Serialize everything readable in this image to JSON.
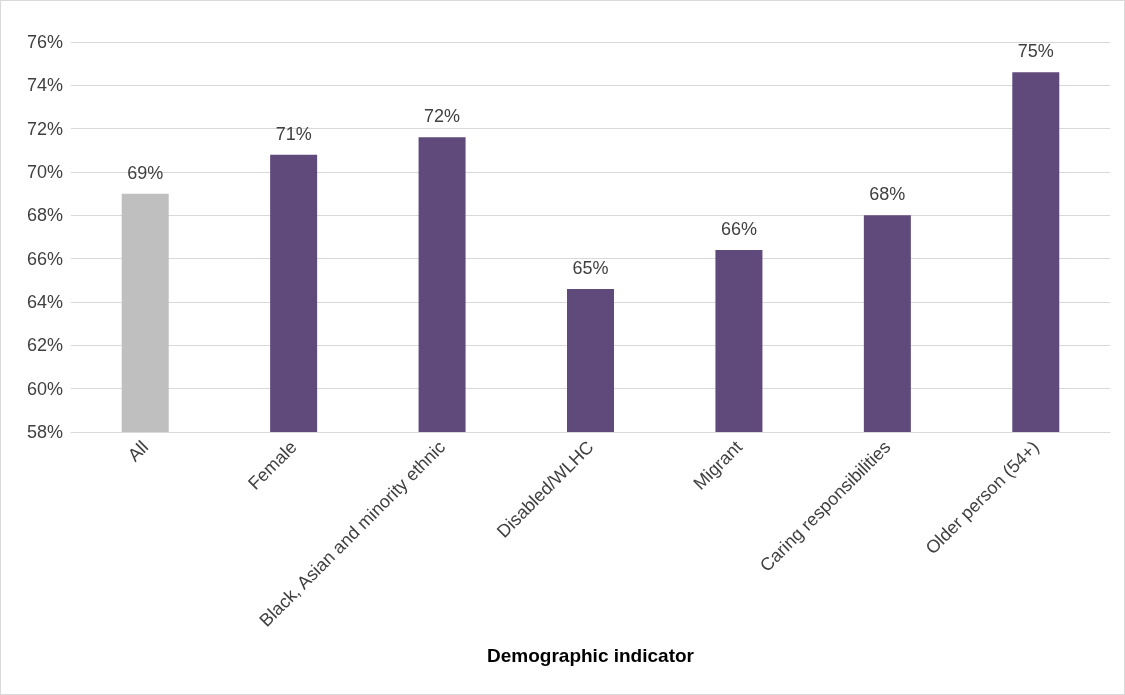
{
  "chart_data": {
    "type": "bar",
    "xlabel": "Demographic indicator",
    "categories": [
      "All",
      "Female",
      "Black, Asian and minority ethnic",
      "Disabled/WLHC",
      "Migrant",
      "Caring responsibilities",
      "Older person (54+)"
    ],
    "values": [
      69.0,
      70.8,
      71.6,
      64.6,
      66.4,
      68.0,
      74.6
    ],
    "value_labels": [
      "69%",
      "71%",
      "72%",
      "65%",
      "66%",
      "68%",
      "75%"
    ],
    "colors": [
      "#bfbfbf",
      "#604a7b",
      "#604a7b",
      "#604a7b",
      "#604a7b",
      "#604a7b",
      "#604a7b"
    ],
    "ylim": [
      58,
      76
    ],
    "yticks": [
      {
        "value": 58,
        "label": "58%"
      },
      {
        "value": 60,
        "label": "60%"
      },
      {
        "value": 62,
        "label": "62%"
      },
      {
        "value": 64,
        "label": "64%"
      },
      {
        "value": 66,
        "label": "66%"
      },
      {
        "value": 68,
        "label": "68%"
      },
      {
        "value": 70,
        "label": "70%"
      },
      {
        "value": 72,
        "label": "72%"
      },
      {
        "value": 74,
        "label": "74%"
      },
      {
        "value": 76,
        "label": "76%"
      }
    ],
    "grid": "y"
  }
}
